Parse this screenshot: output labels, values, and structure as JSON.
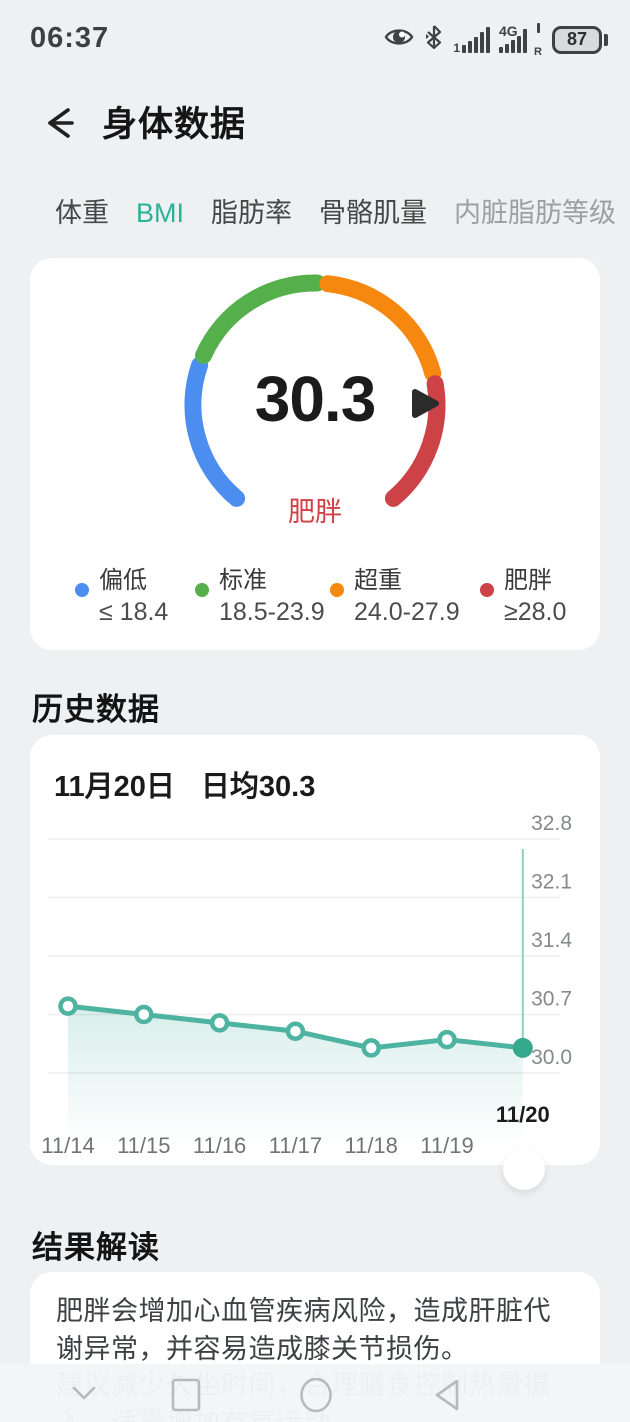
{
  "status_bar": {
    "time": "06:37",
    "battery_percent": "87",
    "sim1_label": "1",
    "network_label": "4G",
    "roaming_label": "R",
    "icons": [
      "eye-comfort-icon",
      "bluetooth-icon",
      "signal-sim1-icon",
      "signal-4g-icon",
      "battery-icon"
    ]
  },
  "header": {
    "title": "身体数据"
  },
  "tabs": [
    {
      "label": "体重",
      "active": false
    },
    {
      "label": "BMI",
      "active": true
    },
    {
      "label": "脂肪率",
      "active": false
    },
    {
      "label": "骨骼肌量",
      "active": false
    },
    {
      "label": "内脏脂肪等级",
      "active": false
    }
  ],
  "tab_accent_color": "#2ab298",
  "gauge": {
    "value": "30.3",
    "status": "肥胖",
    "status_color": "#d23f45",
    "pointer_color": "#2b2b2b",
    "segments": [
      {
        "name": "偏低",
        "color": "#4b8ef0"
      },
      {
        "name": "标准",
        "color": "#55b04b"
      },
      {
        "name": "超重",
        "color": "#f6870f"
      },
      {
        "name": "肥胖",
        "color": "#cc4247"
      }
    ]
  },
  "legend": [
    {
      "label": "偏低",
      "range": "≤ 18.4",
      "color": "#4b8ef0"
    },
    {
      "label": "标准",
      "range": "18.5-23.9",
      "color": "#55b04b"
    },
    {
      "label": "超重",
      "range": "24.0-27.9",
      "color": "#f6870f"
    },
    {
      "label": "肥胖",
      "range": "≥28.0",
      "color": "#cc4247"
    }
  ],
  "history": {
    "section_title": "历史数据",
    "date_label": "11月20日",
    "avg_label": "日均30.3"
  },
  "chart_data": {
    "type": "line",
    "title": "11月20日 日均30.3",
    "x_labels": [
      "11/14",
      "11/15",
      "11/16",
      "11/17",
      "11/18",
      "11/19",
      "11/20"
    ],
    "values": [
      30.8,
      30.7,
      30.6,
      30.5,
      30.3,
      30.4,
      30.3
    ],
    "selected_index": 6,
    "selected_value": 30.3,
    "y_ticks": [
      30.0,
      30.7,
      31.4,
      32.1,
      32.8
    ],
    "y_base": 30.0,
    "ylim": [
      29.6,
      33.0
    ],
    "grid": true,
    "legend_position": "none",
    "line_color": "#4eb3a0",
    "marker_fill": "#ffffff",
    "selected_marker_color": "#35a98e",
    "focus_line_color": "#8ed1c1",
    "grid_color": "#ebedee",
    "tick_label_color": "#85898c",
    "x_label_color": "#6f7477",
    "selected_label_color": "#1c1c1c"
  },
  "interpretation": {
    "section_title": "结果解读",
    "line1": "肥胖会增加心血管疾病风险，造成肝脏代谢异常，并容易造成膝关节损伤。",
    "line2_truncated": "建议减少久坐时间，合理膳食控制热量摄入，适量增加有氧运动"
  },
  "nav_bar": {
    "icons": [
      "hide-navbar-chevron-icon",
      "recents-square-icon",
      "home-circle-icon",
      "back-triangle-icon"
    ]
  }
}
